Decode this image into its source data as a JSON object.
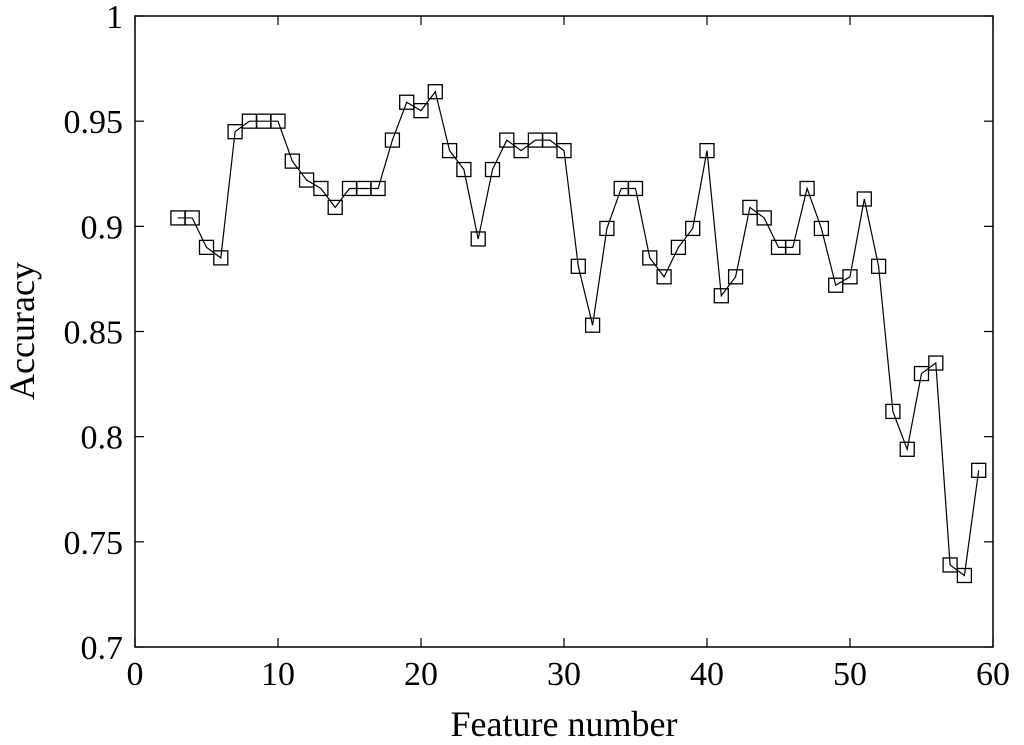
{
  "chart_data": {
    "type": "line",
    "title": "",
    "xlabel": "Feature number",
    "ylabel": "Accuracy",
    "xlim": [
      0,
      60
    ],
    "ylim": [
      0.7,
      1
    ],
    "xticks": [
      0,
      10,
      20,
      30,
      40,
      50,
      60
    ],
    "yticks": [
      0.7,
      0.75,
      0.8,
      0.85,
      0.9,
      0.95,
      1
    ],
    "xtick_labels": [
      "0",
      "10",
      "20",
      "30",
      "40",
      "50",
      "60"
    ],
    "ytick_labels": [
      "0.7",
      "0.75",
      "0.8",
      "0.85",
      "0.9",
      "0.95",
      "1"
    ],
    "grid": false,
    "marker": "square",
    "line_color": "#000000",
    "series": [
      {
        "x": [
          3,
          4,
          5,
          6,
          7,
          8,
          9,
          10,
          11,
          12,
          13,
          14,
          15,
          16,
          17,
          18,
          19,
          20,
          21,
          22,
          23,
          24,
          25,
          26,
          27,
          28,
          29,
          30,
          31,
          32,
          33,
          34,
          35,
          36,
          37,
          38,
          39,
          40,
          41,
          42,
          43,
          44,
          45,
          46,
          47,
          48,
          49,
          50,
          51,
          52,
          53,
          54,
          55,
          56,
          57,
          58,
          59
        ],
        "y": [
          0.904,
          0.904,
          0.89,
          0.885,
          0.945,
          0.95,
          0.95,
          0.95,
          0.931,
          0.922,
          0.918,
          0.909,
          0.918,
          0.918,
          0.918,
          0.941,
          0.959,
          0.955,
          0.964,
          0.936,
          0.927,
          0.894,
          0.927,
          0.941,
          0.936,
          0.941,
          0.941,
          0.936,
          0.881,
          0.853,
          0.899,
          0.918,
          0.918,
          0.885,
          0.876,
          0.89,
          0.899,
          0.936,
          0.867,
          0.876,
          0.909,
          0.904,
          0.89,
          0.89,
          0.918,
          0.899,
          0.872,
          0.876,
          0.913,
          0.881,
          0.812,
          0.794,
          0.83,
          0.835,
          0.739,
          0.734,
          0.784
        ]
      }
    ]
  }
}
